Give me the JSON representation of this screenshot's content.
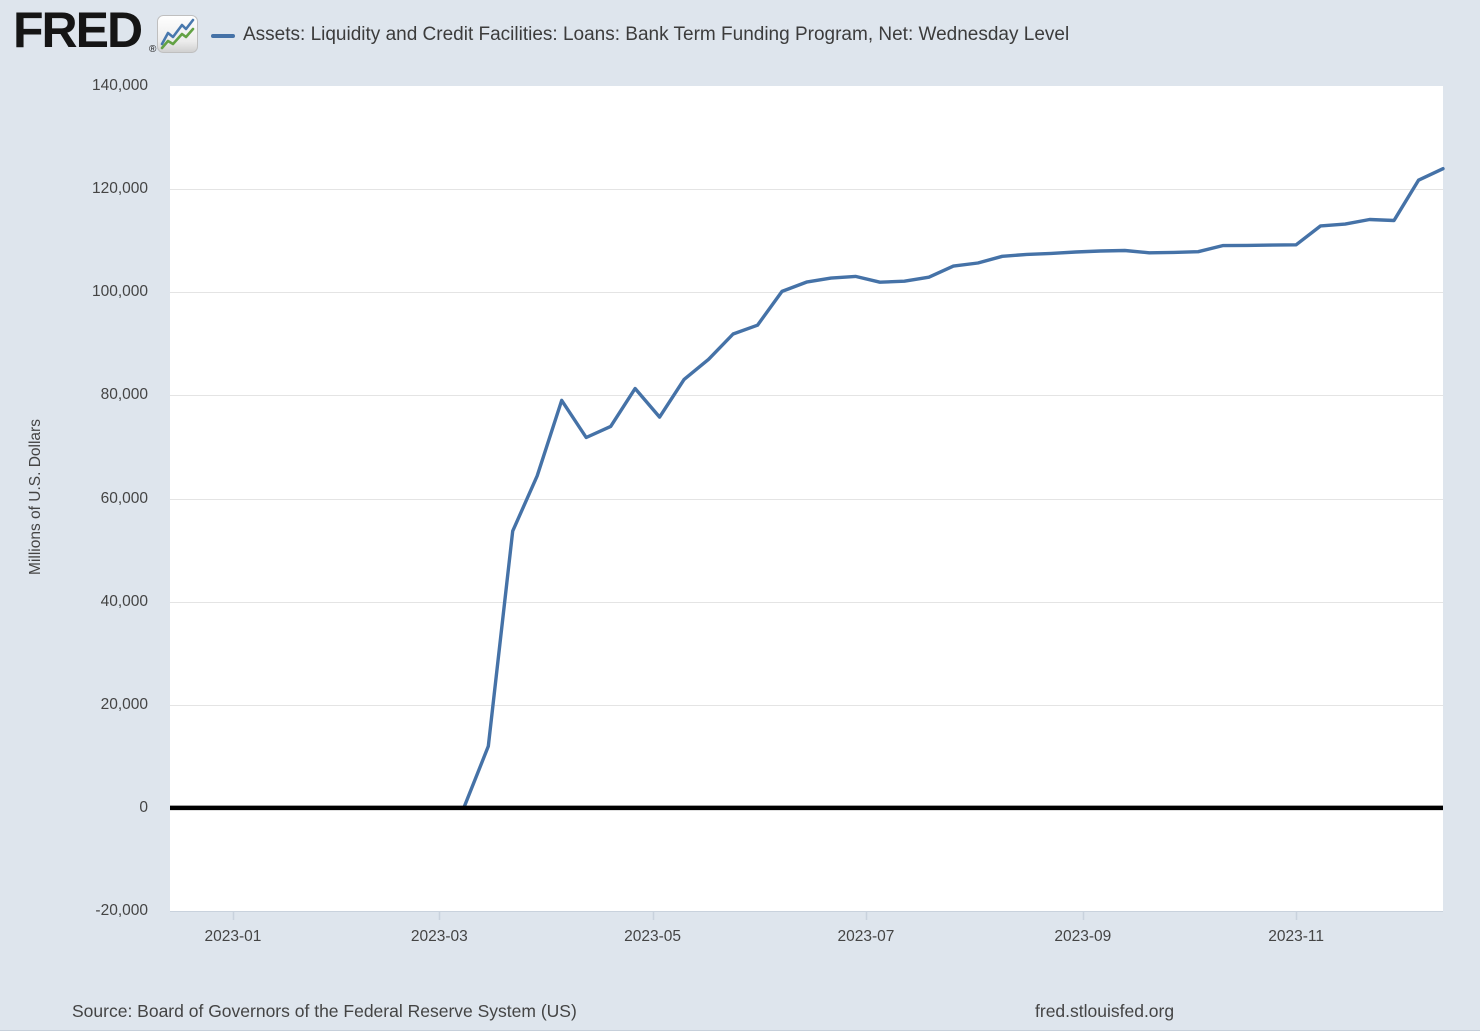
{
  "page": {
    "background_color": "#dee5ed",
    "plot_background_color": "#ffffff"
  },
  "header": {
    "logo_text": "FRED",
    "registered_mark": "®",
    "logo_icon": "fred-line-chart-icon",
    "legend_marker_color": "#4572a7",
    "series_title": "Assets: Liquidity and Credit Facilities: Loans: Bank Term Funding Program, Net: Wednesday Level"
  },
  "footer": {
    "source_text": "Source: Board of Governors of the Federal Reserve System (US)",
    "site_link": "fred.stlouisfed.org"
  },
  "chart_data": {
    "type": "line",
    "title": "Assets: Liquidity and Credit Facilities: Loans: Bank Term Funding Program, Net: Wednesday Level",
    "xlabel": "",
    "ylabel": "Millions of U.S. Dollars",
    "ylim": [
      -20000,
      140000
    ],
    "y_ticks": [
      -20000,
      0,
      20000,
      40000,
      60000,
      80000,
      100000,
      120000,
      140000
    ],
    "y_tick_labels": [
      "-20,000",
      "0",
      "20,000",
      "40,000",
      "60,000",
      "80,000",
      "100,000",
      "120,000",
      "140,000"
    ],
    "x_domain": [
      "2022-12-14",
      "2023-12-13"
    ],
    "x_ticks": [
      "2023-01-01",
      "2023-03-01",
      "2023-05-01",
      "2023-07-01",
      "2023-09-01",
      "2023-11-01"
    ],
    "x_tick_labels": [
      "2023-01",
      "2023-03",
      "2023-05",
      "2023-07",
      "2023-09",
      "2023-11"
    ],
    "grid": "horizontal",
    "legend_position": "top-left",
    "line_color": "#4572a7",
    "zero_line_color": "#000000",
    "grid_color": "#e4e4e4",
    "axis_line_color": "#c9d2dd",
    "series": [
      {
        "name": "Assets: Liquidity and Credit Facilities: Loans: Bank Term Funding Program, Net: Wednesday Level",
        "dates": [
          "2023-03-08",
          "2023-03-15",
          "2023-03-22",
          "2023-03-29",
          "2023-04-05",
          "2023-04-12",
          "2023-04-19",
          "2023-04-26",
          "2023-05-03",
          "2023-05-10",
          "2023-05-17",
          "2023-05-24",
          "2023-05-31",
          "2023-06-07",
          "2023-06-14",
          "2023-06-21",
          "2023-06-28",
          "2023-07-05",
          "2023-07-12",
          "2023-07-19",
          "2023-07-26",
          "2023-08-02",
          "2023-08-09",
          "2023-08-16",
          "2023-08-23",
          "2023-08-30",
          "2023-09-06",
          "2023-09-13",
          "2023-09-20",
          "2023-09-27",
          "2023-10-04",
          "2023-10-11",
          "2023-10-18",
          "2023-10-25",
          "2023-11-01",
          "2023-11-08",
          "2023-11-15",
          "2023-11-22",
          "2023-11-29",
          "2023-12-06",
          "2023-12-13"
        ],
        "values": [
          0,
          11943,
          53669,
          64403,
          79021,
          71837,
          73982,
          81327,
          75778,
          83101,
          87006,
          91907,
          93615,
          100161,
          101969,
          102735,
          103081,
          101958,
          102144,
          102925,
          105078,
          105682,
          106964,
          107337,
          107529,
          107806,
          107993,
          108088,
          107650,
          107737,
          107873,
          109041,
          109078,
          109141,
          109210,
          112869,
          113215,
          114108,
          113909,
          121726,
          123961
        ]
      }
    ]
  }
}
